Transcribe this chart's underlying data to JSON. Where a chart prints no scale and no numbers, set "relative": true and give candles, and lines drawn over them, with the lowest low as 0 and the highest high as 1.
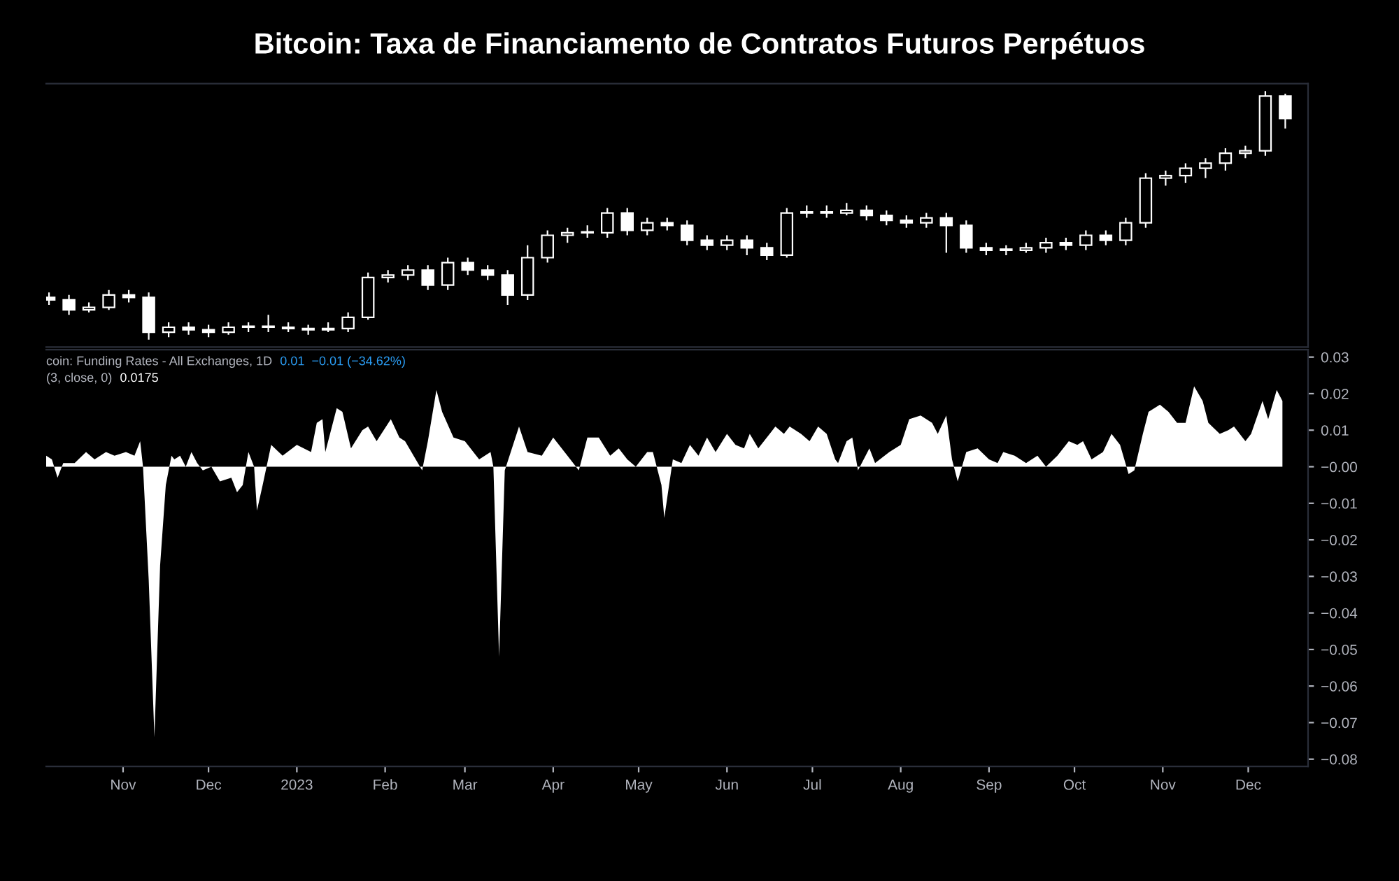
{
  "chart_data": [
    {
      "type": "candlestick",
      "title": "Bitcoin: Taxa de Financiamento de Contratos Futuros Perpétuos",
      "relative": true,
      "tick_labels": false,
      "xlim": [
        "2022-10-05",
        "2023-12-22"
      ],
      "color": "#ffffff",
      "x": [
        "2022-10-06",
        "2022-10-13",
        "2022-10-20",
        "2022-10-27",
        "2022-11-03",
        "2022-11-10",
        "2022-11-17",
        "2022-11-24",
        "2022-12-01",
        "2022-12-08",
        "2022-12-15",
        "2022-12-22",
        "2022-12-29",
        "2023-01-05",
        "2023-01-12",
        "2023-01-19",
        "2023-01-26",
        "2023-02-02",
        "2023-02-09",
        "2023-02-16",
        "2023-02-23",
        "2023-03-02",
        "2023-03-09",
        "2023-03-16",
        "2023-03-23",
        "2023-03-30",
        "2023-04-06",
        "2023-04-13",
        "2023-04-20",
        "2023-04-27",
        "2023-05-04",
        "2023-05-11",
        "2023-05-18",
        "2023-05-25",
        "2023-06-01",
        "2023-06-08",
        "2023-06-15",
        "2023-06-22",
        "2023-06-29",
        "2023-07-06",
        "2023-07-13",
        "2023-07-20",
        "2023-07-27",
        "2023-08-03",
        "2023-08-10",
        "2023-08-17",
        "2023-08-24",
        "2023-08-31",
        "2023-09-07",
        "2023-09-14",
        "2023-09-21",
        "2023-09-28",
        "2023-10-05",
        "2023-10-12",
        "2023-10-19",
        "2023-10-26",
        "2023-11-02",
        "2023-11-09",
        "2023-11-16",
        "2023-11-23",
        "2023-11-30",
        "2023-12-07",
        "2023-12-14"
      ],
      "ohlc": [
        [
          0.17,
          0.19,
          0.14,
          0.16
        ],
        [
          0.16,
          0.18,
          0.1,
          0.12
        ],
        [
          0.12,
          0.15,
          0.11,
          0.13
        ],
        [
          0.13,
          0.2,
          0.12,
          0.18
        ],
        [
          0.18,
          0.2,
          0.15,
          0.17
        ],
        [
          0.17,
          0.19,
          0.0,
          0.03
        ],
        [
          0.03,
          0.07,
          0.01,
          0.05
        ],
        [
          0.05,
          0.07,
          0.02,
          0.04
        ],
        [
          0.04,
          0.06,
          0.01,
          0.03
        ],
        [
          0.03,
          0.07,
          0.02,
          0.05
        ],
        [
          0.05,
          0.07,
          0.03,
          0.05
        ],
        [
          0.05,
          0.1,
          0.03,
          0.05
        ],
        [
          0.05,
          0.07,
          0.03,
          0.045
        ],
        [
          0.045,
          0.06,
          0.02,
          0.04
        ],
        [
          0.04,
          0.07,
          0.03,
          0.045
        ],
        [
          0.045,
          0.11,
          0.03,
          0.09
        ],
        [
          0.09,
          0.27,
          0.08,
          0.25
        ],
        [
          0.25,
          0.28,
          0.23,
          0.26
        ],
        [
          0.26,
          0.3,
          0.24,
          0.28
        ],
        [
          0.28,
          0.3,
          0.2,
          0.22
        ],
        [
          0.22,
          0.33,
          0.2,
          0.31
        ],
        [
          0.31,
          0.33,
          0.26,
          0.28
        ],
        [
          0.28,
          0.3,
          0.24,
          0.26
        ],
        [
          0.26,
          0.28,
          0.14,
          0.18
        ],
        [
          0.18,
          0.38,
          0.16,
          0.33
        ],
        [
          0.33,
          0.44,
          0.31,
          0.42
        ],
        [
          0.42,
          0.45,
          0.39,
          0.43
        ],
        [
          0.43,
          0.46,
          0.41,
          0.43
        ],
        [
          0.43,
          0.53,
          0.41,
          0.51
        ],
        [
          0.51,
          0.53,
          0.42,
          0.44
        ],
        [
          0.44,
          0.49,
          0.42,
          0.47
        ],
        [
          0.47,
          0.49,
          0.44,
          0.46
        ],
        [
          0.46,
          0.48,
          0.38,
          0.4
        ],
        [
          0.4,
          0.42,
          0.36,
          0.38
        ],
        [
          0.38,
          0.42,
          0.36,
          0.4
        ],
        [
          0.4,
          0.42,
          0.34,
          0.37
        ],
        [
          0.37,
          0.39,
          0.32,
          0.34
        ],
        [
          0.34,
          0.53,
          0.33,
          0.51
        ],
        [
          0.51,
          0.54,
          0.49,
          0.51
        ],
        [
          0.51,
          0.54,
          0.49,
          0.51
        ],
        [
          0.51,
          0.55,
          0.5,
          0.52
        ],
        [
          0.52,
          0.54,
          0.48,
          0.5
        ],
        [
          0.5,
          0.52,
          0.46,
          0.48
        ],
        [
          0.48,
          0.5,
          0.45,
          0.47
        ],
        [
          0.47,
          0.51,
          0.45,
          0.49
        ],
        [
          0.49,
          0.51,
          0.35,
          0.46
        ],
        [
          0.46,
          0.48,
          0.35,
          0.37
        ],
        [
          0.37,
          0.39,
          0.34,
          0.36
        ],
        [
          0.36,
          0.38,
          0.34,
          0.36
        ],
        [
          0.36,
          0.39,
          0.35,
          0.37
        ],
        [
          0.37,
          0.41,
          0.35,
          0.39
        ],
        [
          0.39,
          0.41,
          0.36,
          0.38
        ],
        [
          0.38,
          0.44,
          0.36,
          0.42
        ],
        [
          0.42,
          0.44,
          0.38,
          0.4
        ],
        [
          0.4,
          0.49,
          0.38,
          0.47
        ],
        [
          0.47,
          0.67,
          0.45,
          0.65
        ],
        [
          0.65,
          0.68,
          0.62,
          0.66
        ],
        [
          0.66,
          0.71,
          0.63,
          0.69
        ],
        [
          0.69,
          0.73,
          0.65,
          0.71
        ],
        [
          0.71,
          0.77,
          0.68,
          0.75
        ],
        [
          0.75,
          0.78,
          0.73,
          0.76
        ],
        [
          0.76,
          1.0,
          0.74,
          0.98
        ],
        [
          0.98,
          0.99,
          0.85,
          0.89
        ]
      ]
    },
    {
      "type": "area",
      "xlim": [
        "2022-10-05",
        "2023-12-22"
      ],
      "ylim": [
        -0.082,
        0.032
      ],
      "xticks": [
        {
          "value": "2022-11-01",
          "label": "Nov"
        },
        {
          "value": "2022-12-01",
          "label": "Dec"
        },
        {
          "value": "2023-01-01",
          "label": "2023"
        },
        {
          "value": "2023-02-01",
          "label": "Feb"
        },
        {
          "value": "2023-03-01",
          "label": "Mar"
        },
        {
          "value": "2023-04-01",
          "label": "Apr"
        },
        {
          "value": "2023-05-01",
          "label": "May"
        },
        {
          "value": "2023-06-01",
          "label": "Jun"
        },
        {
          "value": "2023-07-01",
          "label": "Jul"
        },
        {
          "value": "2023-08-01",
          "label": "Aug"
        },
        {
          "value": "2023-09-01",
          "label": "Sep"
        },
        {
          "value": "2023-10-01",
          "label": "Oct"
        },
        {
          "value": "2023-11-01",
          "label": "Nov"
        },
        {
          "value": "2023-12-01",
          "label": "Dec"
        }
      ],
      "yticks": [
        0.03,
        0.02,
        0.01,
        {
          "value": 0,
          "label": "−0.00"
        },
        {
          "value": -0.01,
          "label": "−0.01"
        },
        {
          "value": -0.02,
          "label": "−0.02"
        },
        {
          "value": -0.03,
          "label": "−0.03"
        },
        {
          "value": -0.04,
          "label": "−0.04"
        },
        {
          "value": -0.05,
          "label": "−0.05"
        },
        {
          "value": -0.06,
          "label": "−0.06"
        },
        {
          "value": -0.07,
          "label": "−0.07"
        },
        {
          "value": -0.08,
          "label": "−0.08"
        }
      ],
      "annotations": [
        "coin: Funding Rates - All Exchanges, 1D",
        "0.01  −0.01 (−34.62%)",
        "(3, close, 0)",
        "0.0175"
      ],
      "series": [
        {
          "color": "#ffffff",
          "x": [
            "2022-10-05",
            "2022-10-07",
            "2022-10-09",
            "2022-10-11",
            "2022-10-15",
            "2022-10-19",
            "2022-10-22",
            "2022-10-26",
            "2022-10-29",
            "2022-11-02",
            "2022-11-05",
            "2022-11-07",
            "2022-11-08",
            "2022-11-10",
            "2022-11-12",
            "2022-11-14",
            "2022-11-16",
            "2022-11-18",
            "2022-11-19",
            "2022-11-21",
            "2022-11-23",
            "2022-11-25",
            "2022-11-27",
            "2022-11-29",
            "2022-12-02",
            "2022-12-05",
            "2022-12-09",
            "2022-12-11",
            "2022-12-13",
            "2022-12-15",
            "2022-12-17",
            "2022-12-18",
            "2022-12-20",
            "2022-12-23",
            "2022-12-27",
            "2023-01-01",
            "2023-01-06",
            "2023-01-08",
            "2023-01-10",
            "2023-01-11",
            "2023-01-15",
            "2023-01-17",
            "2023-01-20",
            "2023-01-24",
            "2023-01-26",
            "2023-01-29",
            "2023-02-03",
            "2023-02-06",
            "2023-02-08",
            "2023-02-14",
            "2023-02-16",
            "2023-02-19",
            "2023-02-21",
            "2023-02-25",
            "2023-03-01",
            "2023-03-06",
            "2023-03-10",
            "2023-03-11",
            "2023-03-13",
            "2023-03-15",
            "2023-03-20",
            "2023-03-23",
            "2023-03-28",
            "2023-04-01",
            "2023-04-06",
            "2023-04-10",
            "2023-04-13",
            "2023-04-17",
            "2023-04-21",
            "2023-04-24",
            "2023-04-27",
            "2023-04-30",
            "2023-05-04",
            "2023-05-06",
            "2023-05-09",
            "2023-05-10",
            "2023-05-13",
            "2023-05-16",
            "2023-05-19",
            "2023-05-22",
            "2023-05-25",
            "2023-05-28",
            "2023-06-01",
            "2023-06-04",
            "2023-06-07",
            "2023-06-09",
            "2023-06-12",
            "2023-06-16",
            "2023-06-18",
            "2023-06-21",
            "2023-06-23",
            "2023-06-27",
            "2023-06-30",
            "2023-07-03",
            "2023-07-06",
            "2023-07-09",
            "2023-07-10",
            "2023-07-13",
            "2023-07-15",
            "2023-07-17",
            "2023-07-21",
            "2023-07-23",
            "2023-07-28",
            "2023-08-01",
            "2023-08-04",
            "2023-08-08",
            "2023-08-12",
            "2023-08-14",
            "2023-08-17",
            "2023-08-19",
            "2023-08-21",
            "2023-08-24",
            "2023-08-28",
            "2023-09-01",
            "2023-09-04",
            "2023-09-06",
            "2023-09-10",
            "2023-09-14",
            "2023-09-18",
            "2023-09-21",
            "2023-09-25",
            "2023-09-29",
            "2023-10-02",
            "2023-10-04",
            "2023-10-07",
            "2023-10-11",
            "2023-10-14",
            "2023-10-17",
            "2023-10-20",
            "2023-10-22",
            "2023-10-25",
            "2023-10-27",
            "2023-10-31",
            "2023-11-03",
            "2023-11-06",
            "2023-11-09",
            "2023-11-12",
            "2023-11-15",
            "2023-11-17",
            "2023-11-21",
            "2023-11-24",
            "2023-11-26",
            "2023-11-30",
            "2023-12-02",
            "2023-12-06",
            "2023-12-08",
            "2023-12-11",
            "2023-12-13"
          ],
          "values": [
            0.003,
            0.002,
            -0.003,
            0.001,
            0.001,
            0.004,
            0.002,
            0.004,
            0.003,
            0.004,
            0.003,
            0.007,
            0.0,
            -0.031,
            -0.074,
            -0.027,
            -0.005,
            0.003,
            0.002,
            0.003,
            0.0,
            0.004,
            0.001,
            -0.001,
            0.0,
            -0.004,
            -0.003,
            -0.007,
            -0.005,
            0.004,
            0.0,
            -0.012,
            -0.005,
            0.006,
            0.003,
            0.006,
            0.004,
            0.012,
            0.013,
            0.004,
            0.016,
            0.015,
            0.005,
            0.01,
            0.011,
            0.007,
            0.013,
            0.008,
            0.007,
            -0.001,
            0.007,
            0.021,
            0.015,
            0.008,
            0.007,
            0.002,
            0.004,
            0.0,
            -0.052,
            -0.001,
            0.011,
            0.004,
            0.003,
            0.008,
            0.003,
            -0.001,
            0.008,
            0.008,
            0.003,
            0.005,
            0.002,
            0.0,
            0.004,
            0.004,
            -0.005,
            -0.014,
            0.002,
            0.001,
            0.006,
            0.003,
            0.008,
            0.004,
            0.009,
            0.006,
            0.005,
            0.009,
            0.005,
            0.009,
            0.011,
            0.009,
            0.011,
            0.009,
            0.007,
            0.011,
            0.009,
            0.002,
            0.001,
            0.007,
            0.008,
            -0.001,
            0.005,
            0.001,
            0.004,
            0.006,
            0.013,
            0.014,
            0.012,
            0.009,
            0.014,
            0.002,
            -0.004,
            0.004,
            0.005,
            0.002,
            0.001,
            0.004,
            0.003,
            0.001,
            0.003,
            0.0,
            0.003,
            0.007,
            0.006,
            0.007,
            0.002,
            0.004,
            0.009,
            0.006,
            -0.002,
            -0.001,
            0.009,
            0.015,
            0.017,
            0.015,
            0.012,
            0.012,
            0.022,
            0.018,
            0.012,
            0.009,
            0.01,
            0.011,
            0.007,
            0.009,
            0.018,
            0.013,
            0.021,
            0.018
          ]
        }
      ]
    }
  ]
}
